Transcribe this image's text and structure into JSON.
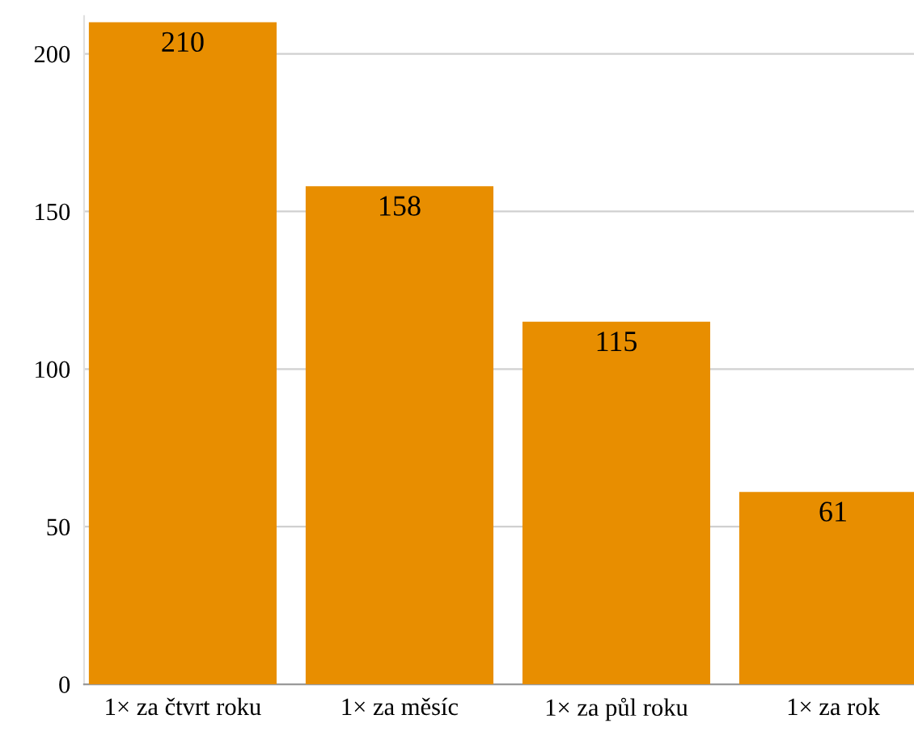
{
  "chart_data": {
    "type": "bar",
    "categories": [
      "1× za čtvrt roku",
      "1× za měsíc",
      "1× za půl roku",
      "1× za rok"
    ],
    "values": [
      210,
      158,
      115,
      61
    ],
    "color": "#e88e00",
    "ylim": [
      0,
      212
    ],
    "yticks": [
      0,
      50,
      100,
      150,
      200
    ],
    "grid": "y",
    "data_labels": true,
    "legend": false
  }
}
